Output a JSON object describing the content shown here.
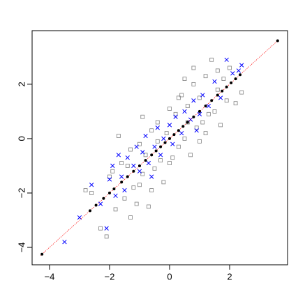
{
  "chart_data": {
    "type": "scatter",
    "xlim": [
      -4.58,
      3.93
    ],
    "ylim": [
      -4.64,
      3.97
    ],
    "xticks": [
      {
        "value": -4,
        "label": "−4"
      },
      {
        "value": -2,
        "label": "−2"
      },
      0,
      2
    ],
    "yticks": [
      {
        "value": -4,
        "label": "−4"
      },
      {
        "value": -2,
        "label": "−2"
      },
      0,
      2
    ],
    "series": [
      {
        "marker": "square",
        "color": "#808080",
        "x": [
          -2.8,
          -2.6,
          -2.3,
          -2.1,
          -1.9,
          -1.8,
          -1.6,
          -1.5,
          -1.4,
          -1.3,
          -1.2,
          -1.1,
          -1.0,
          -0.9,
          -0.8,
          -0.7,
          -0.6,
          -0.5,
          -0.4,
          -0.3,
          -0.2,
          -0.1,
          0.0,
          0.1,
          0.2,
          0.3,
          0.4,
          0.5,
          0.6,
          0.7,
          0.8,
          0.9,
          1.0,
          1.1,
          1.2,
          1.3,
          1.4,
          1.5,
          1.6,
          1.7,
          1.8,
          1.9,
          2.0,
          2.2,
          2.4,
          -1.7,
          -0.9,
          0.5,
          1.0,
          -2.0,
          -0.6,
          0.3,
          1.2,
          -1.3,
          0.0,
          0.8,
          -0.4,
          1.6,
          -1.0,
          0.6
        ],
        "values": [
          -1.9,
          -2.0,
          -3.3,
          -3.6,
          -1.2,
          -2.6,
          -0.9,
          -2.2,
          -1.0,
          -0.4,
          -1.8,
          -2.4,
          -0.2,
          -1.3,
          -0.6,
          -2.5,
          0.3,
          -1.1,
          0.6,
          -0.8,
          -1.6,
          0.2,
          1.1,
          -0.7,
          0.9,
          -0.3,
          1.6,
          0.0,
          1.2,
          -0.6,
          2.0,
          0.4,
          1.5,
          0.6,
          2.3,
          0.9,
          2.9,
          1.0,
          1.8,
          0.5,
          2.2,
          1.4,
          2.6,
          1.3,
          1.7,
          0.1,
          0.8,
          2.2,
          -0.1,
          -1.4,
          -1.9,
          1.5,
          0.2,
          -2.9,
          -0.9,
          2.6,
          -0.1,
          2.5,
          -1.7,
          0.6
        ]
      },
      {
        "marker": "cross",
        "color": "#0000ff",
        "x": [
          -3.5,
          -3.0,
          -2.6,
          -2.3,
          -2.1,
          -2.0,
          -1.8,
          -1.7,
          -1.6,
          -1.5,
          -1.4,
          -1.2,
          -1.1,
          -1.0,
          -0.9,
          -0.8,
          -0.7,
          -0.5,
          -0.4,
          -0.3,
          -0.2,
          0.0,
          0.1,
          0.2,
          0.4,
          0.5,
          0.7,
          0.8,
          1.0,
          1.1,
          1.3,
          1.5,
          1.7,
          1.9,
          2.1,
          2.3,
          2.4,
          -1.9,
          -0.6,
          0.9
        ],
        "values": [
          -3.8,
          -2.9,
          -1.7,
          -2.4,
          -3.3,
          -1.5,
          -2.1,
          -0.6,
          -1.4,
          -1.9,
          -0.7,
          -1.0,
          -0.3,
          -1.2,
          -0.5,
          0.1,
          -0.9,
          -0.3,
          0.4,
          -0.6,
          0.0,
          0.5,
          -0.2,
          0.8,
          0.2,
          1.0,
          0.7,
          1.4,
          0.9,
          1.6,
          1.2,
          2.1,
          1.5,
          2.9,
          2.4,
          2.5,
          2.7,
          -1.0,
          -1.4,
          0.3
        ]
      },
      {
        "marker": "line",
        "color": "#ff0000",
        "x": [
          -4.3,
          3.6
        ],
        "values": [
          -4.3,
          3.6
        ]
      },
      {
        "marker": "dot",
        "color": "#000000",
        "x": [
          -4.25,
          -2.65,
          -2.45,
          -2.2,
          -2.0,
          -1.85,
          -1.6,
          -1.4,
          -1.2,
          -1.0,
          -0.8,
          -0.6,
          -0.45,
          -0.3,
          -0.15,
          0.0,
          0.15,
          0.3,
          0.45,
          0.6,
          0.8,
          1.0,
          1.2,
          1.4,
          1.6,
          1.75,
          1.9,
          2.05,
          2.2,
          2.35,
          3.6
        ],
        "values": [
          -4.25,
          -2.65,
          -2.45,
          -2.2,
          -2.0,
          -1.85,
          -1.6,
          -1.4,
          -1.2,
          -1.0,
          -0.8,
          -0.6,
          -0.45,
          -0.3,
          -0.15,
          0.0,
          0.15,
          0.3,
          0.45,
          0.6,
          0.8,
          1.0,
          1.2,
          1.4,
          1.6,
          1.75,
          1.9,
          2.05,
          2.2,
          2.35,
          3.6
        ]
      }
    ]
  }
}
